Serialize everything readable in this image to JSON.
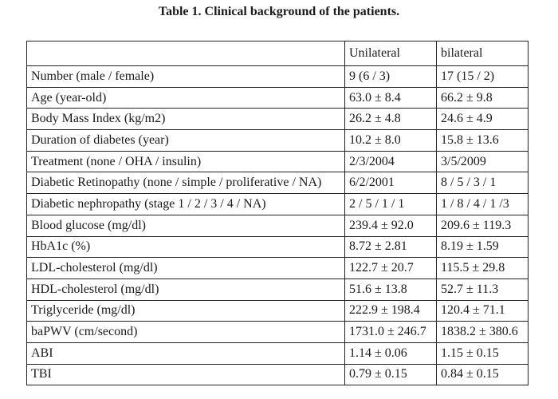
{
  "caption": "Table 1. Clinical background of the patients.",
  "columns": [
    "",
    "Unilateral",
    "bilateral"
  ],
  "rows": [
    [
      "Number (male / female)",
      "9  (6 / 3)",
      "17  (15 / 2)"
    ],
    [
      "Age (year-old)",
      "63.0 ± 8.4",
      "66.2 ± 9.8"
    ],
    [
      "Body Mass Index  (kg/m2)",
      "26.2 ± 4.8",
      "24.6 ± 4.9"
    ],
    [
      "Duration of diabetes (year)",
      "10.2 ± 8.0",
      "15.8 ± 13.6"
    ],
    [
      "Treatment (none / OHA  / insulin)",
      "2/3/2004",
      "3/5/2009"
    ],
    [
      "Diabetic Retinopathy (none / simple / proliferative / NA)",
      "6/2/2001",
      "8 /  5 / 3 / 1"
    ],
    [
      "Diabetic nephropathy (stage 1 / 2 / 3 / 4 / NA)",
      "2 / 5  / 1 / 1",
      "1  / 8 / 4 / 1 /3"
    ],
    [
      "Blood glucose (mg/dl)",
      "239.4 ± 92.0",
      "209.6 ± 119.3"
    ],
    [
      "HbA1c  (%)",
      "8.72 ± 2.81",
      "8.19 ± 1.59"
    ],
    [
      "LDL-cholesterol (mg/dl)",
      "122.7 ± 20.7",
      "115.5 ± 29.8"
    ],
    [
      "HDL-cholesterol (mg/dl)",
      "51.6 ± 13.8",
      "52.7 ± 11.3"
    ],
    [
      "Triglyceride (mg/dl)",
      "222.9 ± 198.4",
      "120.4 ± 71.1"
    ],
    [
      "baPWV (cm/second)",
      "1731.0 ± 246.7",
      "1838.2 ± 380.6"
    ],
    [
      "ABI",
      "1.14 ± 0.06",
      "1.15 ± 0.15"
    ],
    [
      "TBI",
      "0.79 ± 0.15",
      "0.84 ± 0.15"
    ]
  ]
}
